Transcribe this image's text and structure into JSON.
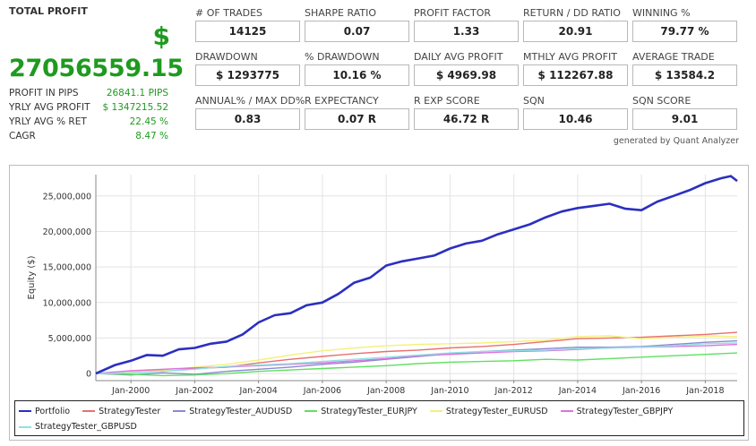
{
  "summary": {
    "title": "TOTAL PROFIT",
    "currency": "$",
    "total": "27056559.15",
    "rows": [
      {
        "label": "PROFIT IN PIPS",
        "value": "26841.1 PIPS"
      },
      {
        "label": "YRLY AVG PROFIT",
        "value": "$ 1347215.52"
      },
      {
        "label": "YRLY AVG % RET",
        "value": "22.45 %"
      },
      {
        "label": "CAGR",
        "value": "8.47 %"
      }
    ]
  },
  "metrics": [
    {
      "label": "# OF TRADES",
      "value": "14125"
    },
    {
      "label": "SHARPE RATIO",
      "value": "0.07"
    },
    {
      "label": "PROFIT FACTOR",
      "value": "1.33"
    },
    {
      "label": "RETURN / DD RATIO",
      "value": "20.91"
    },
    {
      "label": "WINNING %",
      "value": "79.77 %"
    },
    {
      "label": "DRAWDOWN",
      "value": "$ 1293775"
    },
    {
      "label": "% DRAWDOWN",
      "value": "10.16 %"
    },
    {
      "label": "DAILY AVG PROFIT",
      "value": "$ 4969.98"
    },
    {
      "label": "MTHLY AVG PROFIT",
      "value": "$ 112267.88"
    },
    {
      "label": "AVERAGE TRADE",
      "value": "$ 13584.2"
    },
    {
      "label": "ANNUAL% / MAX DD%",
      "value": "0.83"
    },
    {
      "label": "R EXPECTANCY",
      "value": "0.07 R"
    },
    {
      "label": "R EXP SCORE",
      "value": "46.72 R"
    },
    {
      "label": "SQN",
      "value": "10.46"
    },
    {
      "label": "SQN SCORE",
      "value": "9.01"
    }
  ],
  "generated_by": "generated by Quant Analyzer",
  "chart_data": {
    "type": "line",
    "title": "",
    "xlabel": "",
    "ylabel": "Equity ($)",
    "xlim": [
      1998.9,
      2019.0
    ],
    "ylim": [
      -1000000,
      28000000
    ],
    "x_ticks": [
      2000,
      2002,
      2004,
      2006,
      2008,
      2010,
      2012,
      2014,
      2016,
      2018
    ],
    "x_tick_labels": [
      "Jan-2000",
      "Jan-2002",
      "Jan-2004",
      "Jan-2006",
      "Jan-2008",
      "Jan-2010",
      "Jan-2012",
      "Jan-2014",
      "Jan-2016",
      "Jan-2018"
    ],
    "y_ticks": [
      0,
      5000000,
      10000000,
      15000000,
      20000000,
      25000000
    ],
    "y_tick_labels": [
      "0",
      "5,000,000",
      "10,000,000",
      "15,000,000",
      "20,000,000",
      "25,000,000"
    ],
    "grid": true,
    "legend_position": "bottom",
    "series": [
      {
        "name": "Portfolio",
        "color": "#2b2fc0",
        "width": 2.6,
        "x": [
          1998.9,
          1999.5,
          2000.0,
          2000.5,
          2001.0,
          2001.5,
          2002.0,
          2002.5,
          2003.0,
          2003.5,
          2004.0,
          2004.5,
          2005.0,
          2005.5,
          2006.0,
          2006.5,
          2007.0,
          2007.5,
          2008.0,
          2008.5,
          2009.0,
          2009.5,
          2010.0,
          2010.5,
          2011.0,
          2011.5,
          2012.0,
          2012.5,
          2013.0,
          2013.5,
          2014.0,
          2014.5,
          2015.0,
          2015.5,
          2016.0,
          2016.5,
          2017.0,
          2017.5,
          2018.0,
          2018.5,
          2018.8,
          2019.0
        ],
        "y": [
          0,
          1200000,
          1800000,
          2600000,
          2500000,
          3400000,
          3600000,
          4200000,
          4500000,
          5500000,
          7200000,
          8200000,
          8500000,
          9600000,
          10000000,
          11200000,
          12800000,
          13500000,
          15200000,
          15800000,
          16200000,
          16600000,
          17600000,
          18300000,
          18700000,
          19600000,
          20300000,
          21000000,
          22000000,
          22800000,
          23300000,
          23600000,
          23900000,
          23200000,
          23000000,
          24200000,
          25000000,
          25800000,
          26800000,
          27500000,
          27800000,
          27100000
        ]
      },
      {
        "name": "StrategyTester",
        "color": "#e86f6f",
        "width": 1.4,
        "x": [
          1998.9,
          2000,
          2001,
          2002,
          2003,
          2004,
          2005,
          2006,
          2007,
          2008,
          2009,
          2010,
          2011,
          2012,
          2013,
          2014,
          2015,
          2016,
          2017,
          2018,
          2019
        ],
        "y": [
          0,
          300000,
          500000,
          700000,
          900000,
          1500000,
          2000000,
          2400000,
          2800000,
          3100000,
          3300000,
          3600000,
          3800000,
          4100000,
          4500000,
          4900000,
          5000000,
          5100000,
          5300000,
          5500000,
          5800000
        ]
      },
      {
        "name": "StrategyTester_AUDUSD",
        "color": "#8a8ad0",
        "width": 1.4,
        "x": [
          1998.9,
          2000,
          2001,
          2002,
          2003,
          2004,
          2005,
          2006,
          2007,
          2008,
          2009,
          2010,
          2011,
          2012,
          2013,
          2014,
          2015,
          2016,
          2017,
          2018,
          2019
        ],
        "y": [
          0,
          -200000,
          100000,
          -100000,
          300000,
          600000,
          900000,
          1300000,
          1600000,
          2000000,
          2400000,
          2800000,
          3100000,
          3300000,
          3500000,
          3700000,
          3700000,
          3800000,
          4100000,
          4400000,
          4600000
        ]
      },
      {
        "name": "StrategyTester_EURJPY",
        "color": "#5fe05f",
        "width": 1.4,
        "x": [
          1998.9,
          2000,
          2001,
          2002,
          2003,
          2004,
          2005,
          2006,
          2007,
          2008,
          2009,
          2010,
          2011,
          2012,
          2013,
          2014,
          2015,
          2016,
          2017,
          2018,
          2019
        ],
        "y": [
          0,
          -100000,
          -300000,
          -200000,
          0,
          300000,
          500000,
          700000,
          900000,
          1100000,
          1400000,
          1600000,
          1700000,
          1800000,
          2000000,
          1900000,
          2100000,
          2300000,
          2500000,
          2700000,
          2900000
        ]
      },
      {
        "name": "StrategyTester_EURUSD",
        "color": "#f5f07a",
        "width": 1.4,
        "x": [
          1998.9,
          2000,
          2001,
          2002,
          2003,
          2004,
          2005,
          2006,
          2007,
          2008,
          2009,
          2010,
          2011,
          2012,
          2013,
          2014,
          2015,
          2016,
          2017,
          2018,
          2019
        ],
        "y": [
          0,
          200000,
          400000,
          900000,
          1300000,
          1900000,
          2600000,
          3200000,
          3600000,
          3900000,
          4100000,
          4200000,
          4300000,
          4500000,
          4700000,
          5200000,
          5300000,
          4900000,
          5100000,
          5300000,
          5200000
        ]
      },
      {
        "name": "StrategyTester_GBPJPY",
        "color": "#e070e0",
        "width": 1.4,
        "x": [
          1998.9,
          2000,
          2001,
          2002,
          2003,
          2004,
          2005,
          2006,
          2007,
          2008,
          2009,
          2010,
          2011,
          2012,
          2013,
          2014,
          2015,
          2016,
          2017,
          2018,
          2019
        ],
        "y": [
          0,
          400000,
          600000,
          800000,
          900000,
          1100000,
          1300000,
          1500000,
          1800000,
          2100000,
          2500000,
          2700000,
          2900000,
          3100000,
          3200000,
          3400000,
          3600000,
          3700000,
          3800000,
          3900000,
          4100000
        ]
      },
      {
        "name": "StrategyTester_GBPUSD",
        "color": "#8de3e3",
        "width": 1.4,
        "x": [
          1998.9,
          2000,
          2001,
          2002,
          2003,
          2004,
          2005,
          2006,
          2007,
          2008,
          2009,
          2010,
          2011,
          2012,
          2013,
          2014,
          2015,
          2016,
          2017,
          2018,
          2019
        ],
        "y": [
          0,
          100000,
          300000,
          600000,
          1000000,
          1200000,
          1400000,
          1700000,
          2000000,
          2300000,
          2600000,
          2900000,
          3100000,
          3200000,
          3300000,
          3500000,
          3600000,
          3700000,
          3900000,
          4200000,
          4300000
        ]
      }
    ]
  }
}
